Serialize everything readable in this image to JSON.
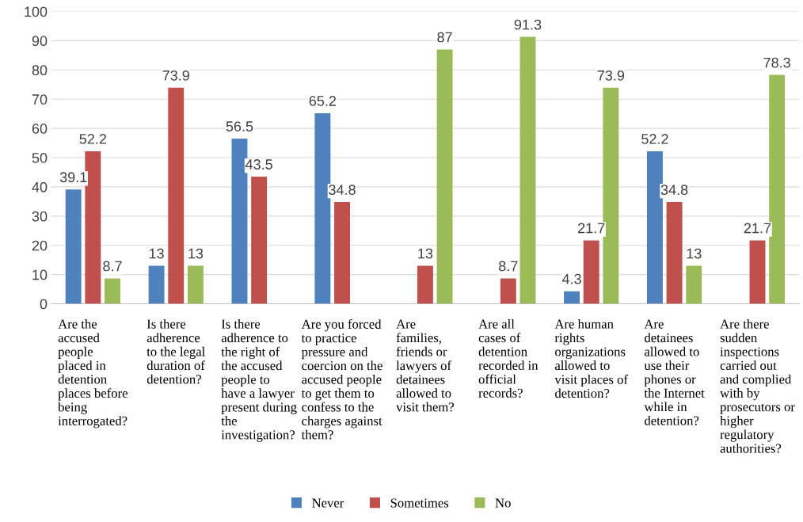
{
  "chart_data": {
    "type": "bar",
    "categories": [
      "Are the\naccused\npeople\nplaced in\ndetention\nplaces before\nbeing\ninterrogated?",
      "Is there\nadherence\nto the legal\nduration of\ndetention?",
      "Is there\nadherence to\nthe right of\nthe accused\npeople to\nhave a lawyer\npresent during\nthe\ninvestigation?",
      "Are you forced\nto practice\npressure and\ncoercion on the\naccused people\nto get them to\nconfess to the\ncharges against\nthem?",
      "Are\nfamilies,\nfriends or\nlawyers of\ndetainees\nallowed to\nvisit them?",
      "Are all\ncases of\ndetention\nrecorded in\nofficial\nrecords?",
      "Are human\nrights\norganizations\nallowed to\nvisit places of\ndetention?",
      "Are\ndetainees\nallowed to\nuse their\nphones or\nthe Internet\nwhile in\ndetention?",
      "Are there\nsudden\ninspections\ncarried out\nand complied\nwith by\nprosecutors or\nhigher\nregulatory\nauthorities?"
    ],
    "series": [
      {
        "name": "Never",
        "color": "#4f81bd",
        "values": [
          39.1,
          13,
          56.5,
          65.2,
          null,
          null,
          4.3,
          52.2,
          null
        ]
      },
      {
        "name": "Sometimes",
        "color": "#c0504d",
        "values": [
          52.2,
          73.9,
          43.5,
          34.8,
          13,
          8.7,
          21.7,
          34.8,
          21.7
        ]
      },
      {
        "name": "No",
        "color": "#9bbb59",
        "values": [
          8.7,
          13,
          null,
          null,
          87,
          91.3,
          73.9,
          13,
          78.3
        ]
      }
    ],
    "ylim": [
      0,
      100
    ],
    "yticks": [
      0,
      10,
      20,
      30,
      40,
      50,
      60,
      70,
      80,
      90,
      100
    ],
    "grid": "y",
    "legend": "bottom",
    "data_labels": true
  }
}
